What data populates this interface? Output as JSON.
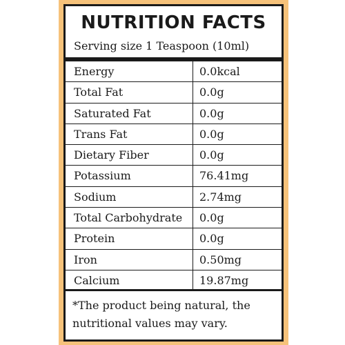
{
  "label": {
    "title": "NUTRITION FACTS",
    "serving": "Serving size 1 Teaspoon (10ml)",
    "rows": [
      {
        "name": "Energy",
        "value": "0.0kcal"
      },
      {
        "name": "Total Fat",
        "value": "0.0g"
      },
      {
        "name": "Saturated Fat",
        "value": "0.0g"
      },
      {
        "name": "Trans Fat",
        "value": "0.0g"
      },
      {
        "name": "Dietary Fiber",
        "value": "0.0g"
      },
      {
        "name": "Potassium",
        "value": "76.41mg"
      },
      {
        "name": "Sodium",
        "value": "2.74mg"
      },
      {
        "name": "Total Carbohydrate",
        "value": "0.0g"
      },
      {
        "name": "Protein",
        "value": "0.0g"
      },
      {
        "name": "Iron",
        "value": "0.50mg"
      },
      {
        "name": "Calcium",
        "value": "19.87mg"
      }
    ],
    "note_line1": "*The product being natural, the",
    "note_line2": "nutritional values may vary."
  },
  "colors": {
    "frame": "#f6c27a",
    "ink": "#1a1a1a"
  }
}
